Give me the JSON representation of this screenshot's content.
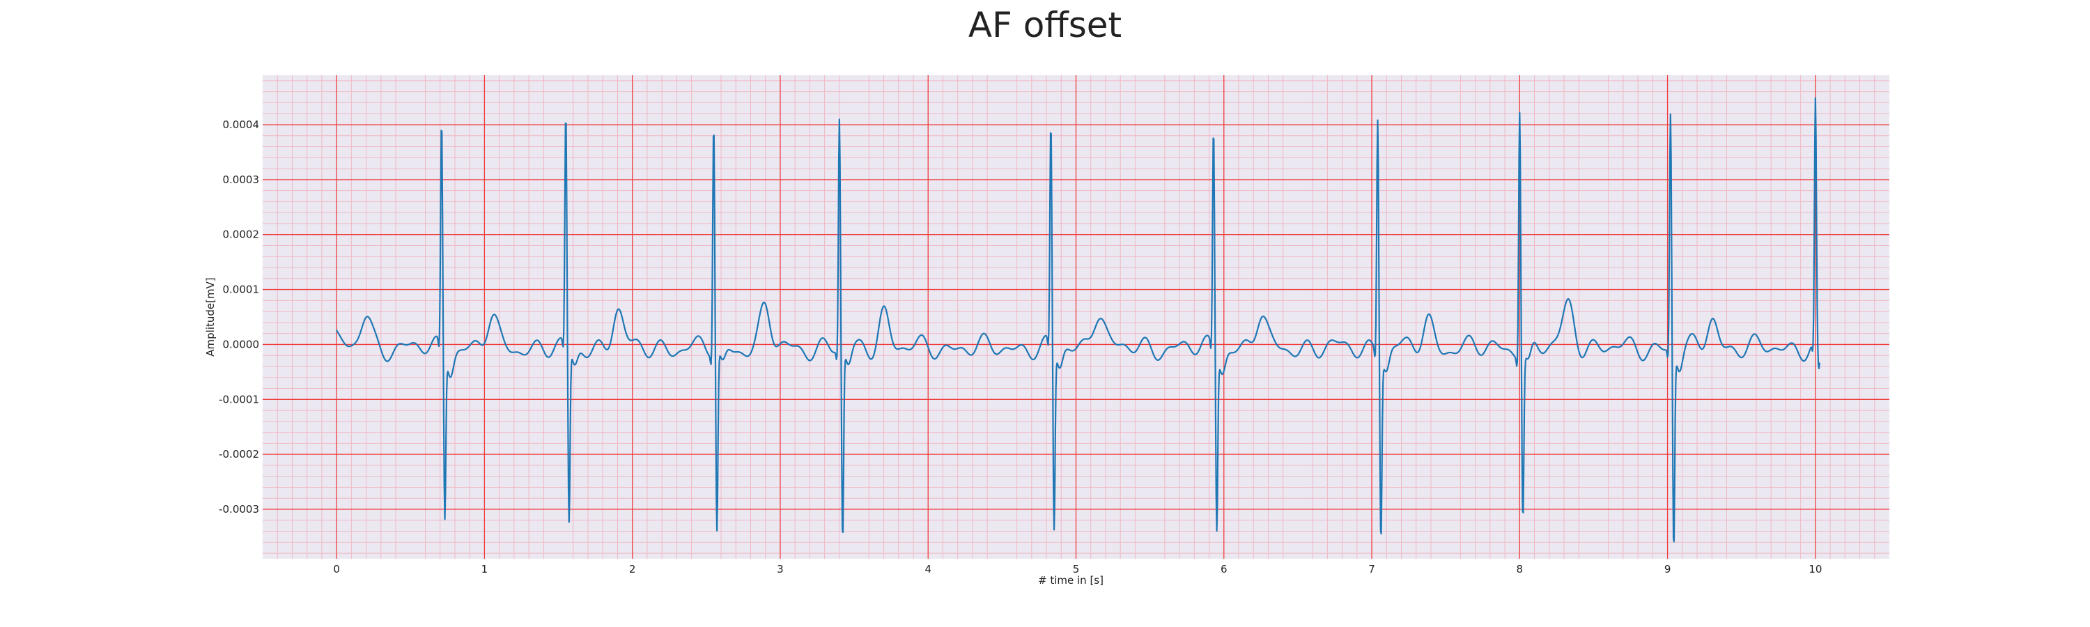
{
  "chart_data": {
    "type": "line",
    "title": "AF offset",
    "xlabel": "# time in [s]",
    "ylabel": "Amplitude[mV]",
    "xlim": [
      -0.5,
      10.5
    ],
    "ylim": [
      -0.00039,
      0.00049
    ],
    "xticks": [
      0,
      1,
      2,
      3,
      4,
      5,
      6,
      7,
      8,
      9,
      10
    ],
    "xtick_labels": [
      "0",
      "1",
      "2",
      "3",
      "4",
      "5",
      "6",
      "7",
      "8",
      "9",
      "10"
    ],
    "yticks": [
      -0.0003,
      -0.0002,
      -0.0001,
      0.0,
      0.0001,
      0.0002,
      0.0003,
      0.0004
    ],
    "ytick_labels": [
      "-0.0003",
      "-0.0002",
      "-0.0001",
      "0.0000",
      "0.0001",
      "0.0002",
      "0.0003",
      "0.0004"
    ],
    "grid": true,
    "minor_grid": true,
    "colors": {
      "background": "#ebe8f2",
      "major_grid": "#f03c3c",
      "minor_grid": "#f0b8c4",
      "line": "#1f77b4"
    },
    "series": [
      {
        "beats": [
          {
            "t": 0.71,
            "r": 0.00041,
            "s": -0.0003
          },
          {
            "t": 1.55,
            "r": 0.00042,
            "s": -0.00032
          },
          {
            "t": 2.55,
            "r": 0.00042,
            "s": -0.00033
          },
          {
            "t": 3.4,
            "r": 0.00042,
            "s": -0.00035
          },
          {
            "t": 4.83,
            "r": 0.0004,
            "s": -0.00033
          },
          {
            "t": 5.93,
            "r": 0.0004,
            "s": -0.00032
          },
          {
            "t": 7.04,
            "r": 0.00043,
            "s": -0.00033
          },
          {
            "t": 8.0,
            "r": 0.00045,
            "s": -0.0003
          },
          {
            "t": 9.02,
            "r": 0.00043,
            "s": -0.00036
          },
          {
            "t": 10.0,
            "r": 0.00044,
            "s": -5e-05
          }
        ],
        "waves": [
          {
            "t": 0.2,
            "a": 6e-05,
            "w": 0.035
          },
          {
            "t": 1.05,
            "a": 5.5e-05,
            "w": 0.035
          },
          {
            "t": 1.9,
            "a": 7e-05,
            "w": 0.035
          },
          {
            "t": 2.9,
            "a": 7e-05,
            "w": 0.035
          },
          {
            "t": 3.7,
            "a": 6.5e-05,
            "w": 0.035
          },
          {
            "t": 5.15,
            "a": 7e-05,
            "w": 0.04
          },
          {
            "t": 6.25,
            "a": 6e-05,
            "w": 0.035
          },
          {
            "t": 7.38,
            "a": 5e-05,
            "w": 0.035
          },
          {
            "t": 8.33,
            "a": 8e-05,
            "w": 0.04
          },
          {
            "t": 9.3,
            "a": 5.5e-05,
            "w": 0.035
          }
        ],
        "start_value": 1.5e-05,
        "sample_step": 0.004
      }
    ]
  }
}
